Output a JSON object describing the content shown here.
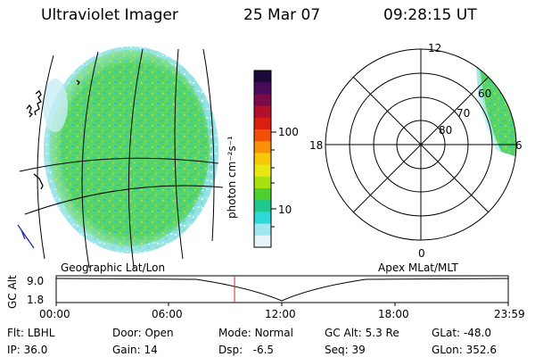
{
  "header": {
    "instrument": "Ultraviolet Imager",
    "date": "25 Mar 07",
    "time": "09:28:15 UT"
  },
  "colorbar": {
    "label": "photon cm⁻²s⁻¹",
    "ticks": [
      "100",
      "10"
    ],
    "colors": [
      "#1a0a3a",
      "#4a0a5a",
      "#7a0a4a",
      "#b0102a",
      "#d82010",
      "#f05008",
      "#f89008",
      "#f8c808",
      "#e8e810",
      "#a8e010",
      "#50d030",
      "#20c890",
      "#30d8d8",
      "#a0e8f0",
      "#e8f4f8"
    ]
  },
  "polar_plot": {
    "mlat_labels": [
      "80",
      "70",
      "60"
    ],
    "mlt_labels": {
      "top": "12",
      "left": "18",
      "right": "6",
      "bottom": "0"
    }
  },
  "geo_map": {
    "label": "Geographic Lat/Lon"
  },
  "apex_label": "Apex MLat/MLT",
  "altitude_plot": {
    "axis_label": "GC Alt",
    "y_ticks": [
      "9.0",
      "1.8"
    ],
    "x_ticks": [
      "00:00",
      "06:00",
      "12:00",
      "18:00",
      "23:59"
    ],
    "current_time_marker_hour": 9.47
  },
  "status": {
    "flt_label": "Flt:",
    "flt_value": "LBHL",
    "ip_label": "IP:",
    "ip_value": "36.0",
    "door_label": "Door:",
    "door_value": "Open",
    "gain_label": "Gain:",
    "gain_value": "14",
    "mode_label": "Mode:",
    "mode_value": "Normal",
    "dsp_label": "Dsp:",
    "dsp_value": "-6.5",
    "gcalt_label": "GC Alt:",
    "gcalt_value": "5.3 Re",
    "seq_label": "Seq:",
    "seq_value": "39",
    "glat_label": "GLat:",
    "glat_value": "-48.0",
    "glon_label": "GLon:",
    "glon_value": "352.6"
  }
}
